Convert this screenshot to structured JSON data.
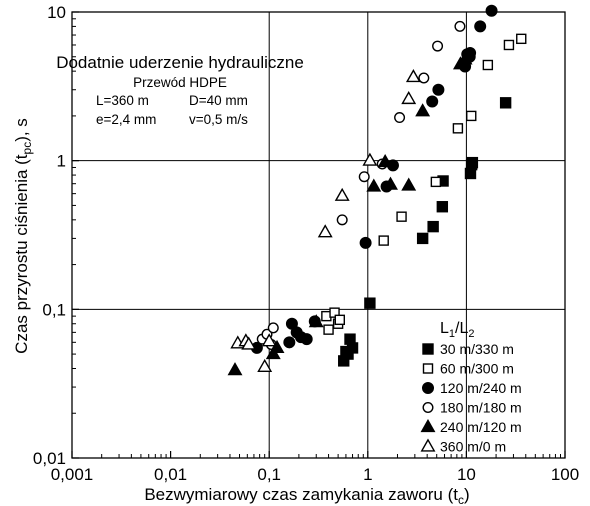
{
  "chart_data": {
    "type": "scatter",
    "x_scale": "log",
    "y_scale": "log",
    "xlim": [
      0.001,
      100
    ],
    "ylim": [
      0.01,
      10
    ],
    "x_ticks": [
      "0,001",
      "0,01",
      "0,1",
      "1",
      "10",
      "100"
    ],
    "y_ticks": [
      "0,01",
      "0,1",
      "1",
      "10"
    ],
    "grid": "major decades (vertical at 0,1 / 1 / 10; horizontal at 0,1 / 1)",
    "xlabel_main": "Bezwymiarowy czas zamykania zaworu (t",
    "xlabel_sub": "c",
    "xlabel_end": ")",
    "ylabel_main": "Czas przyrostu ciśnienia (t",
    "ylabel_sub": "pc",
    "ylabel_end": "), s",
    "annotation": {
      "title": "Dodatnie uderzenie hydrauliczne",
      "pipe": "Przewód HDPE",
      "L": "L=360 m",
      "D": "D=40 mm",
      "e": "e=2,4 mm",
      "v": "v=0,5 m/s"
    },
    "legend": {
      "placement": "bottom-right",
      "title_main": "L",
      "title_sub1": "1",
      "title_mid": "/L",
      "title_sub2": "2"
    },
    "series": [
      {
        "name": "30 m/330 m",
        "marker": "square",
        "fill": "filled",
        "points": [
          [
            0.57,
            0.045
          ],
          [
            0.63,
            0.05
          ],
          [
            0.66,
            0.063
          ],
          [
            0.7,
            0.055
          ],
          [
            0.6,
            0.052
          ],
          [
            1.05,
            0.11
          ],
          [
            3.6,
            0.3
          ],
          [
            4.6,
            0.36
          ],
          [
            5.7,
            0.49
          ],
          [
            5.8,
            0.73
          ],
          [
            11,
            0.82
          ],
          [
            11.3,
            0.94
          ],
          [
            11.5,
            0.97
          ],
          [
            25,
            2.45
          ]
        ]
      },
      {
        "name": "60 m/300 m",
        "marker": "square",
        "fill": "open",
        "points": [
          [
            0.38,
            0.09
          ],
          [
            0.4,
            0.073
          ],
          [
            0.46,
            0.095
          ],
          [
            0.5,
            0.08
          ],
          [
            0.52,
            0.085
          ],
          [
            1.45,
            0.29
          ],
          [
            2.2,
            0.42
          ],
          [
            4.9,
            0.72
          ],
          [
            8.2,
            1.65
          ],
          [
            11.2,
            2.0
          ],
          [
            16.5,
            4.4
          ],
          [
            27,
            6.0
          ],
          [
            36,
            6.6
          ]
        ]
      },
      {
        "name": "120 m/240 m",
        "marker": "circle",
        "fill": "filled",
        "points": [
          [
            0.075,
            0.055
          ],
          [
            0.16,
            0.06
          ],
          [
            0.17,
            0.08
          ],
          [
            0.19,
            0.07
          ],
          [
            0.21,
            0.065
          ],
          [
            0.24,
            0.063
          ],
          [
            0.29,
            0.083
          ],
          [
            0.95,
            0.28
          ],
          [
            1.55,
            0.67
          ],
          [
            1.8,
            0.93
          ],
          [
            4.5,
            2.5
          ],
          [
            5.2,
            3.0
          ],
          [
            9.7,
            4.3
          ],
          [
            10.8,
            5.0
          ],
          [
            10.2,
            5.2
          ],
          [
            10.9,
            5.3
          ],
          [
            13.8,
            8.0
          ],
          [
            18,
            10.2
          ]
        ]
      },
      {
        "name": "180 m/180 m",
        "marker": "circle",
        "fill": "open",
        "points": [
          [
            0.085,
            0.063
          ],
          [
            0.095,
            0.068
          ],
          [
            0.105,
            0.058
          ],
          [
            0.11,
            0.075
          ],
          [
            0.55,
            0.4
          ],
          [
            0.92,
            0.78
          ],
          [
            1.4,
            0.95
          ],
          [
            2.1,
            1.95
          ],
          [
            3.7,
            3.6
          ],
          [
            5.1,
            5.9
          ],
          [
            8.6,
            8.0
          ]
        ]
      },
      {
        "name": "240 m/120 m",
        "marker": "triangle",
        "fill": "filled",
        "points": [
          [
            0.045,
            0.039
          ],
          [
            0.11,
            0.05
          ],
          [
            0.12,
            0.055
          ],
          [
            0.3,
            0.082
          ],
          [
            1.15,
            0.67
          ],
          [
            1.5,
            0.98
          ],
          [
            1.7,
            0.69
          ],
          [
            2.6,
            0.68
          ],
          [
            3.6,
            2.15
          ],
          [
            8.7,
            4.45
          ],
          [
            9.7,
            4.8
          ]
        ]
      },
      {
        "name": "360 m/0 m",
        "marker": "triangle",
        "fill": "open",
        "points": [
          [
            0.048,
            0.059
          ],
          [
            0.058,
            0.061
          ],
          [
            0.062,
            0.058
          ],
          [
            0.09,
            0.041
          ],
          [
            0.1,
            0.061
          ],
          [
            0.37,
            0.33
          ],
          [
            0.55,
            0.58
          ],
          [
            1.05,
            1.0
          ],
          [
            2.6,
            2.6
          ],
          [
            2.9,
            3.65
          ]
        ]
      }
    ]
  }
}
